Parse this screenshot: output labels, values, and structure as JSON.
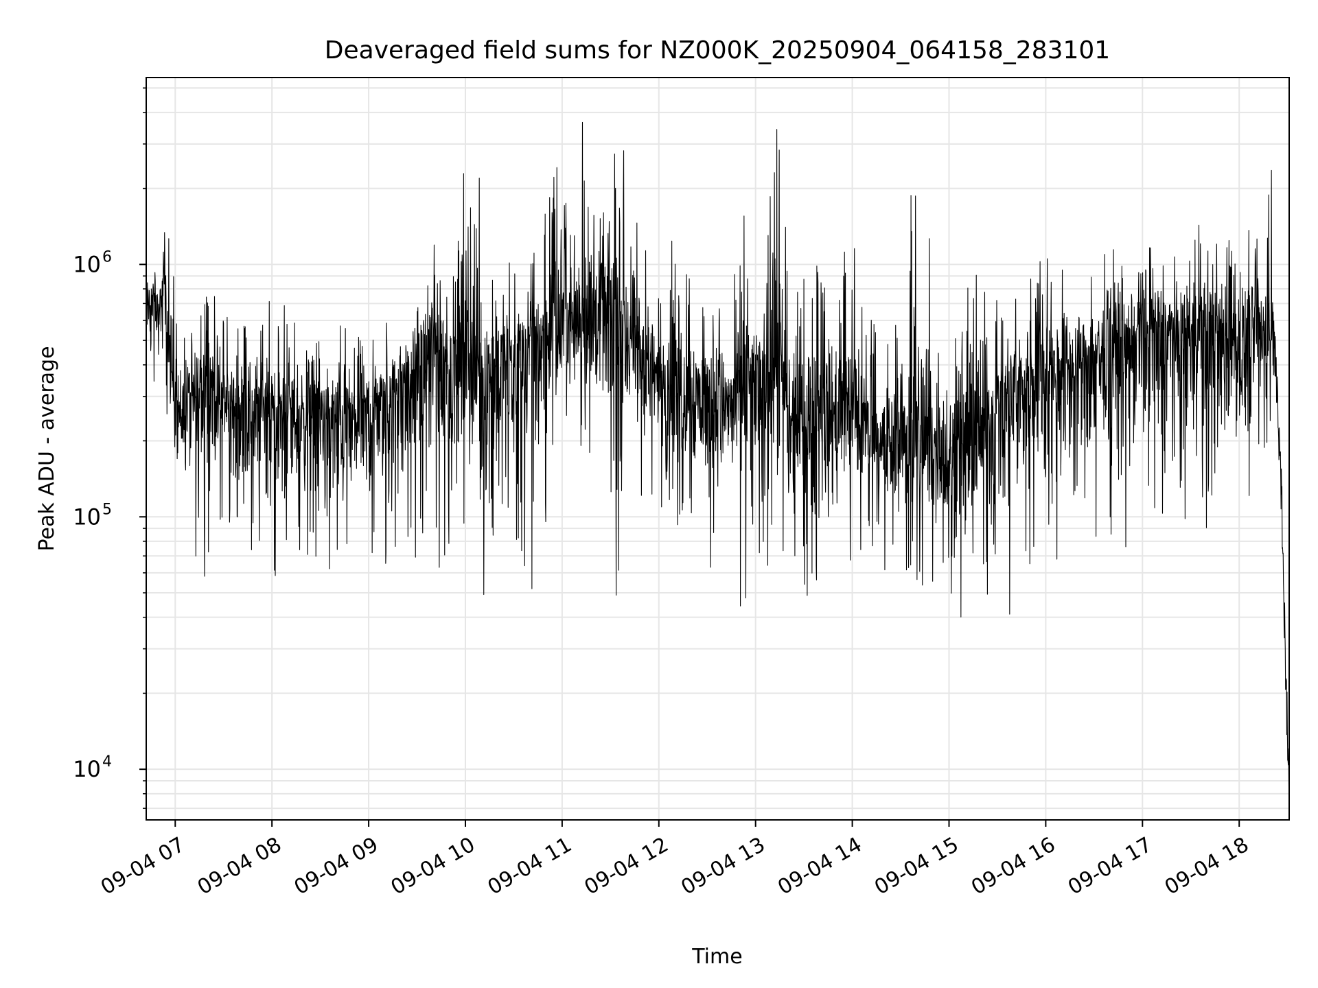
{
  "chart_data": {
    "type": "line",
    "title": "Deaveraged field sums for NZ000K_20250904_064158_283101",
    "xlabel": "Time",
    "ylabel": "Peak ADU - average",
    "yscale": "log",
    "ylim": [
      6300,
      5500000
    ],
    "xlim": [
      "2025-09-04 06:42",
      "2025-09-04 18:31"
    ],
    "x_ticks": [
      {
        "value": "2025-09-04 07:00",
        "label": "09-04 07"
      },
      {
        "value": "2025-09-04 08:00",
        "label": "09-04 08"
      },
      {
        "value": "2025-09-04 09:00",
        "label": "09-04 09"
      },
      {
        "value": "2025-09-04 10:00",
        "label": "09-04 10"
      },
      {
        "value": "2025-09-04 11:00",
        "label": "09-04 11"
      },
      {
        "value": "2025-09-04 12:00",
        "label": "09-04 12"
      },
      {
        "value": "2025-09-04 13:00",
        "label": "09-04 13"
      },
      {
        "value": "2025-09-04 14:00",
        "label": "09-04 14"
      },
      {
        "value": "2025-09-04 15:00",
        "label": "09-04 15"
      },
      {
        "value": "2025-09-04 16:00",
        "label": "09-04 16"
      },
      {
        "value": "2025-09-04 17:00",
        "label": "09-04 17"
      },
      {
        "value": "2025-09-04 18:00",
        "label": "09-04 18"
      }
    ],
    "y_ticks": [
      {
        "value": 10000,
        "base": "10",
        "exp": "4"
      },
      {
        "value": 100000,
        "base": "10",
        "exp": "5"
      },
      {
        "value": 1000000,
        "base": "10",
        "exp": "6"
      }
    ],
    "grid": true,
    "line_color": "#000000",
    "grid_color": "#e6e6e6",
    "series": [
      {
        "x": [
          "2025-09-04 06:42",
          "2025-09-04 06:45",
          "2025-09-04 06:49",
          "2025-09-04 06:53",
          "2025-09-04 06:57",
          "2025-09-04 07:03",
          "2025-09-04 07:08",
          "2025-09-04 07:12",
          "2025-09-04 07:16",
          "2025-09-04 07:20",
          "2025-09-04 07:26",
          "2025-09-04 07:32",
          "2025-09-04 07:38",
          "2025-09-04 07:44",
          "2025-09-04 07:50",
          "2025-09-04 07:56",
          "2025-09-04 08:02",
          "2025-09-04 08:08",
          "2025-09-04 08:15",
          "2025-09-04 08:22",
          "2025-09-04 08:30",
          "2025-09-04 08:38",
          "2025-09-04 08:45",
          "2025-09-04 08:52",
          "2025-09-04 09:00",
          "2025-09-04 09:08",
          "2025-09-04 09:15",
          "2025-09-04 09:22",
          "2025-09-04 09:30",
          "2025-09-04 09:38",
          "2025-09-04 09:45",
          "2025-09-04 09:52",
          "2025-09-04 09:57",
          "2025-09-04 10:03",
          "2025-09-04 10:10",
          "2025-09-04 10:15",
          "2025-09-04 10:20",
          "2025-09-04 10:27",
          "2025-09-04 10:35",
          "2025-09-04 10:42",
          "2025-09-04 10:48",
          "2025-09-04 10:52",
          "2025-09-04 10:57",
          "2025-09-04 11:05",
          "2025-09-04 11:12",
          "2025-09-04 11:20",
          "2025-09-04 11:27",
          "2025-09-04 11:33",
          "2025-09-04 11:38",
          "2025-09-04 11:45",
          "2025-09-04 11:52",
          "2025-09-04 12:00",
          "2025-09-04 12:08",
          "2025-09-04 12:15",
          "2025-09-04 12:22",
          "2025-09-04 12:30",
          "2025-09-04 12:38",
          "2025-09-04 12:45",
          "2025-09-04 12:52",
          "2025-09-04 12:58",
          "2025-09-04 13:05",
          "2025-09-04 13:12",
          "2025-09-04 13:16",
          "2025-09-04 13:22",
          "2025-09-04 13:30",
          "2025-09-04 13:38",
          "2025-09-04 13:45",
          "2025-09-04 13:52",
          "2025-09-04 14:00",
          "2025-09-04 14:08",
          "2025-09-04 14:15",
          "2025-09-04 14:22",
          "2025-09-04 14:30",
          "2025-09-04 14:37",
          "2025-09-04 14:45",
          "2025-09-04 14:52",
          "2025-09-04 15:00",
          "2025-09-04 15:08",
          "2025-09-04 15:15",
          "2025-09-04 15:22",
          "2025-09-04 15:30",
          "2025-09-04 15:38",
          "2025-09-04 15:45",
          "2025-09-04 15:52",
          "2025-09-04 16:00",
          "2025-09-04 16:08",
          "2025-09-04 16:15",
          "2025-09-04 16:22",
          "2025-09-04 16:30",
          "2025-09-04 16:38",
          "2025-09-04 16:45",
          "2025-09-04 16:52",
          "2025-09-04 17:00",
          "2025-09-04 17:08",
          "2025-09-04 17:15",
          "2025-09-04 17:22",
          "2025-09-04 17:30",
          "2025-09-04 17:38",
          "2025-09-04 17:45",
          "2025-09-04 17:52",
          "2025-09-04 18:00",
          "2025-09-04 18:08",
          "2025-09-04 18:15",
          "2025-09-04 18:20",
          "2025-09-04 18:24",
          "2025-09-04 18:27",
          "2025-09-04 18:29",
          "2025-09-04 18:31"
        ],
        "hi": [
          1050000,
          1100000,
          1000000,
          1500000,
          1200000,
          600000,
          650000,
          700000,
          750000,
          1000000,
          750000,
          650000,
          650000,
          600000,
          700000,
          1000000,
          550000,
          700000,
          600000,
          700000,
          700000,
          600000,
          600000,
          550000,
          600000,
          550000,
          700000,
          650000,
          800000,
          1700000,
          1000000,
          800000,
          3300000,
          2500000,
          2900000,
          1100000,
          900000,
          1300000,
          1000000,
          1100000,
          1200000,
          2600000,
          2500000,
          1800000,
          3800000,
          2300000,
          3300000,
          2900000,
          3000000,
          1500000,
          1400000,
          900000,
          2000000,
          1200000,
          800000,
          700000,
          700000,
          600000,
          2800000,
          800000,
          900000,
          4200000,
          2900000,
          550000,
          1500000,
          1000000,
          900000,
          900000,
          1600000,
          800000,
          600000,
          500000,
          800000,
          2700000,
          2600000,
          700000,
          700000,
          600000,
          1100000,
          800000,
          900000,
          900000,
          1000000,
          1100000,
          1200000,
          1100000,
          1000000,
          1000000,
          1100000,
          1100000,
          1200000,
          1200000,
          1100000,
          1300000,
          1300000,
          1200000,
          1600000,
          1400000,
          1300000,
          1300000,
          1100000,
          1900000,
          1500000,
          2400000,
          500000,
          150000,
          30000,
          17000
        ],
        "mid": [
          650000,
          750000,
          650000,
          800000,
          400000,
          250000,
          300000,
          280000,
          320000,
          380000,
          300000,
          280000,
          250000,
          280000,
          260000,
          300000,
          240000,
          260000,
          250000,
          280000,
          260000,
          240000,
          250000,
          230000,
          260000,
          280000,
          300000,
          350000,
          380000,
          450000,
          450000,
          400000,
          420000,
          380000,
          380000,
          350000,
          400000,
          420000,
          450000,
          500000,
          550000,
          500000,
          500000,
          600000,
          650000,
          600000,
          600000,
          550000,
          500000,
          480000,
          400000,
          350000,
          380000,
          330000,
          320000,
          300000,
          300000,
          280000,
          350000,
          330000,
          380000,
          400000,
          350000,
          220000,
          230000,
          250000,
          260000,
          250000,
          280000,
          220000,
          200000,
          190000,
          220000,
          200000,
          190000,
          180000,
          180000,
          170000,
          220000,
          230000,
          250000,
          300000,
          330000,
          350000,
          380000,
          400000,
          400000,
          420000,
          450000,
          450000,
          450000,
          500000,
          500000,
          550000,
          550000,
          500000,
          550000,
          550000,
          520000,
          500000,
          480000,
          500000,
          550000,
          600000,
          300000,
          80000,
          20000,
          10000
        ],
        "lo": [
          450000,
          170000,
          400000,
          180000,
          200000,
          100000,
          70000,
          48000,
          60000,
          48000,
          100000,
          70000,
          60000,
          65000,
          55000,
          60000,
          50000,
          60000,
          70000,
          65000,
          70000,
          50000,
          52000,
          60000,
          60000,
          65000,
          60000,
          55000,
          70000,
          70000,
          60000,
          70000,
          75000,
          90000,
          28000,
          60000,
          70000,
          80000,
          70000,
          45000,
          50000,
          200000,
          180000,
          250000,
          180000,
          150000,
          200000,
          25000,
          130000,
          110000,
          120000,
          110000,
          100000,
          80000,
          70000,
          60000,
          65000,
          60000,
          36000,
          60000,
          55000,
          50000,
          45000,
          38000,
          45000,
          42000,
          48000,
          52000,
          50000,
          60000,
          65000,
          60000,
          55000,
          60000,
          48000,
          45000,
          42000,
          35000,
          32000,
          38000,
          45000,
          40000,
          50000,
          55000,
          60000,
          60000,
          58000,
          60000,
          62000,
          65000,
          70000,
          75000,
          80000,
          70000,
          75000,
          70000,
          80000,
          85000,
          62000,
          80000,
          90000,
          130000,
          150000,
          200000,
          100000,
          40000,
          15000,
          8500
        ]
      }
    ]
  }
}
